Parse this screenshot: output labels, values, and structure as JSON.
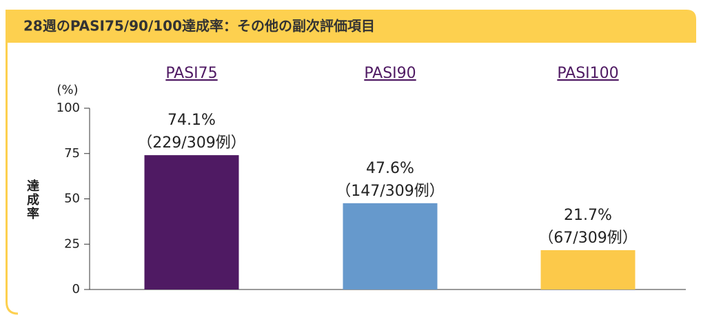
{
  "chart_data": {
    "type": "bar",
    "title": "28週のPASI75/90/100達成率：その他の副次評価項目",
    "ylabel": "達成率",
    "y_unit": "(%)",
    "categories": [
      "PASI75",
      "PASI90",
      "PASI100"
    ],
    "values": [
      74.1,
      47.6,
      21.7
    ],
    "value_labels": [
      "74.1%",
      "47.6%",
      "21.7%"
    ],
    "value_notes": [
      "（229/309例）",
      "（147/309例）",
      "（67/309例）"
    ],
    "colors": [
      "#4f1a63",
      "#6699cc",
      "#fcc94a"
    ],
    "ylim": [
      0,
      100
    ],
    "yticks": [
      0,
      25,
      50,
      75,
      100
    ],
    "grid": false
  }
}
